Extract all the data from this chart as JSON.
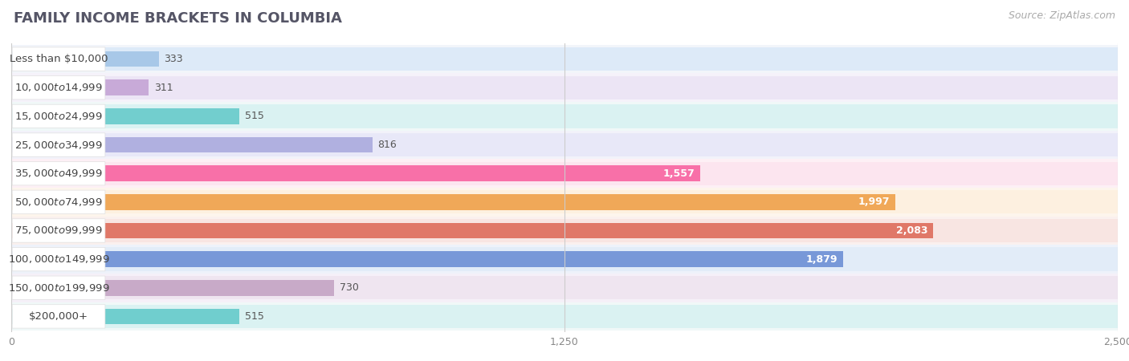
{
  "title": "FAMILY INCOME BRACKETS IN COLUMBIA",
  "source": "Source: ZipAtlas.com",
  "categories": [
    "Less than $10,000",
    "$10,000 to $14,999",
    "$15,000 to $24,999",
    "$25,000 to $34,999",
    "$35,000 to $49,999",
    "$50,000 to $74,999",
    "$75,000 to $99,999",
    "$100,000 to $149,999",
    "$150,000 to $199,999",
    "$200,000+"
  ],
  "values": [
    333,
    311,
    515,
    816,
    1557,
    1997,
    2083,
    1879,
    730,
    515
  ],
  "bar_colors": [
    "#a8c8e8",
    "#c8aad8",
    "#72cece",
    "#b0b0e0",
    "#f870a8",
    "#f0a858",
    "#e07868",
    "#7898d8",
    "#c8aac8",
    "#70cece"
  ],
  "bar_bg_colors": [
    "#ddeaf8",
    "#ece5f5",
    "#daf2f2",
    "#e8e8f8",
    "#fce5ef",
    "#fdf0e0",
    "#f8e5e2",
    "#e2ecf8",
    "#efe5f0",
    "#daf2f2"
  ],
  "xlim": [
    0,
    2500
  ],
  "xticks": [
    0,
    1250,
    2500
  ],
  "xticklabels": [
    "0",
    "1,250",
    "2,500"
  ],
  "value_threshold": 1000,
  "title_fontsize": 13,
  "source_fontsize": 9,
  "label_fontsize": 9.5,
  "value_fontsize": 9,
  "bg_color": "#ffffff",
  "row_bg_colors": [
    "#f2f5fa",
    "#f5f2fa",
    "#f0f8f8",
    "#f2f2fa",
    "#fdf0f5",
    "#fdf5ec",
    "#faf0ee",
    "#eef2fa",
    "#f5f0f8",
    "#f0f8f8"
  ]
}
